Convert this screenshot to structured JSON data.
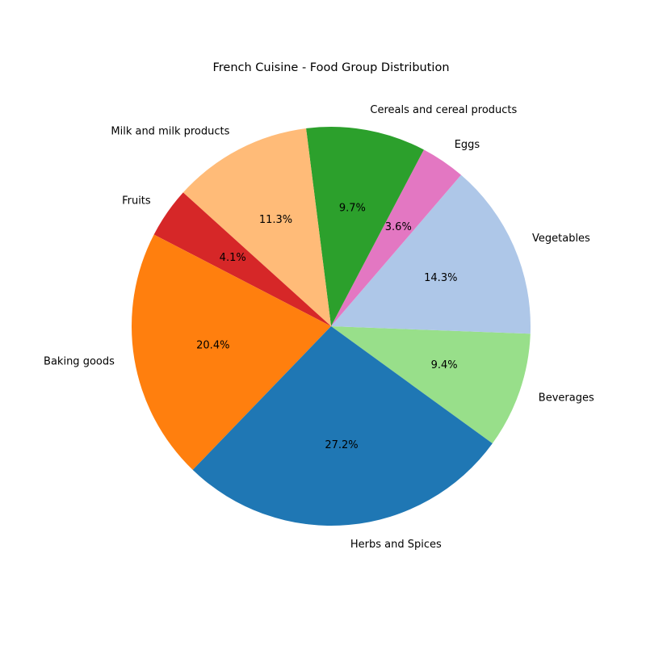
{
  "chart_data": {
    "type": "pie",
    "title": "French Cuisine - Food Group Distribution",
    "start_angle_deg": -36,
    "direction": "counterclockwise",
    "slices": [
      {
        "label": "Beverages",
        "value": 9.4,
        "pct_label": "9.4%",
        "color": "#98df8a"
      },
      {
        "label": "Vegetables",
        "value": 14.3,
        "pct_label": "14.3%",
        "color": "#aec7e8"
      },
      {
        "label": "Eggs",
        "value": 3.6,
        "pct_label": "3.6%",
        "color": "#e377c2"
      },
      {
        "label": "Cereals and cereal products",
        "value": 9.7,
        "pct_label": "9.7%",
        "color": "#2ca02c"
      },
      {
        "label": "Milk and milk products",
        "value": 11.3,
        "pct_label": "11.3%",
        "color": "#ffbb78"
      },
      {
        "label": "Fruits",
        "value": 4.1,
        "pct_label": "4.1%",
        "color": "#d62728"
      },
      {
        "label": "Baking goods",
        "value": 20.4,
        "pct_label": "20.4%",
        "color": "#ff7f0e"
      },
      {
        "label": "Herbs and Spices",
        "value": 27.2,
        "pct_label": "27.2%",
        "color": "#1f77b4"
      }
    ]
  }
}
